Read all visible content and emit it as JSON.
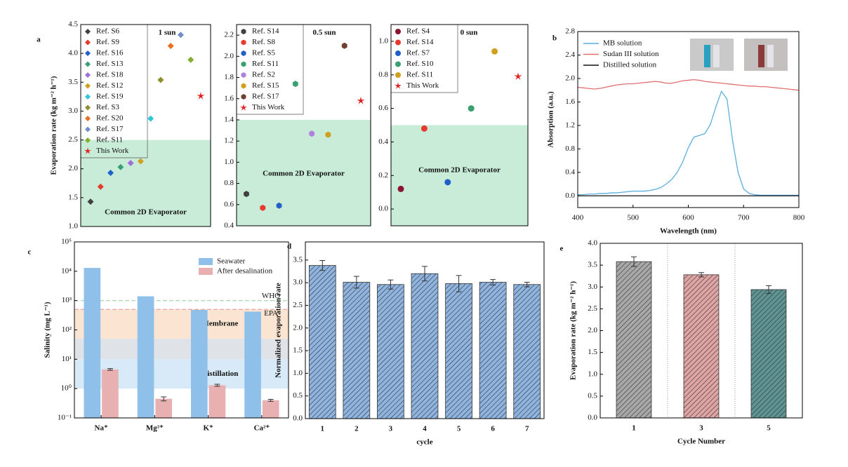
{
  "chart_data": [
    {
      "type": "scatter",
      "panel_label": "a",
      "title": "1 sun",
      "ylabel": "Evaporation rate (kg m⁻² h⁻¹)",
      "ylim": [
        1.0,
        4.5
      ],
      "yticks": [
        {
          "value": 1.0,
          "label": "1.0"
        },
        1.5,
        {
          "value": 2.0,
          "label": "2.0"
        },
        2.5,
        {
          "value": 3.0,
          "label": "3.0"
        },
        3.5,
        {
          "value": 4.0,
          "label": "4.0"
        },
        4.5
      ],
      "threshold": 2.5,
      "annotation": "Common 2D Evaporator",
      "marker": "diamond",
      "series": [
        {
          "name": "Ref. S6",
          "color": "#404040",
          "values": [
            1.43
          ]
        },
        {
          "name": "Ref. S9",
          "color": "#e8392e",
          "values": [
            1.69
          ]
        },
        {
          "name": "Ref. S16",
          "color": "#2060c8",
          "values": [
            1.93
          ]
        },
        {
          "name": "Ref. S13",
          "color": "#3aa070",
          "values": [
            2.03
          ]
        },
        {
          "name": "Ref. S18",
          "color": "#a070d8",
          "values": [
            2.1
          ]
        },
        {
          "name": "Ref. S12",
          "color": "#d0a020",
          "values": [
            2.13
          ]
        },
        {
          "name": "Ref. S19",
          "color": "#30c8d8",
          "values": [
            2.87
          ]
        },
        {
          "name": "Ref. S3",
          "color": "#909030",
          "values": [
            3.54
          ]
        },
        {
          "name": "Ref. S20",
          "color": "#e87020",
          "values": [
            4.13
          ]
        },
        {
          "name": "Ref. S17",
          "color": "#7090c8",
          "values": [
            4.32
          ]
        },
        {
          "name": "Ref. S11",
          "color": "#80b030",
          "values": [
            3.89
          ]
        },
        {
          "name": "This Work",
          "color": "#e02020",
          "marker": "star",
          "values": [
            3.26
          ]
        }
      ]
    },
    {
      "type": "scatter",
      "title": "0.5 sun",
      "ylim": [
        0.4,
        2.3
      ],
      "yticks": [
        0.4,
        0.6,
        0.8,
        {
          "value": 1.0,
          "label": "1.0"
        },
        1.2,
        1.4,
        1.6,
        1.8,
        {
          "value": 2.0,
          "label": "2.0"
        },
        2.2
      ],
      "threshold": 1.4,
      "annotation": "Common 2D Evaporator",
      "marker": "hexagon",
      "series": [
        {
          "name": "Ref. S14",
          "color": "#404040",
          "values": [
            0.7
          ]
        },
        {
          "name": "Ref. S8",
          "color": "#e8392e",
          "values": [
            0.57
          ]
        },
        {
          "name": "Ref. S5",
          "color": "#2060c8",
          "values": [
            0.59
          ]
        },
        {
          "name": "Ref. S11",
          "color": "#3aa070",
          "values": [
            1.74
          ]
        },
        {
          "name": "Ref. S2",
          "color": "#b080e0",
          "values": [
            1.27
          ]
        },
        {
          "name": "Ref. S15",
          "color": "#d0a020",
          "values": [
            1.26
          ]
        },
        {
          "name": "Ref. S17",
          "color": "#704030",
          "values": [
            2.1
          ]
        },
        {
          "name": "This Work",
          "color": "#e02020",
          "marker": "star",
          "values": [
            1.58
          ]
        }
      ]
    },
    {
      "type": "scatter",
      "title": "0 sun",
      "ylim": [
        -0.1,
        1.1
      ],
      "yticks": [
        {
          "value": 0.0,
          "label": "0.0"
        },
        0.2,
        0.4,
        0.6,
        0.8,
        {
          "value": 1.0,
          "label": "1.0"
        }
      ],
      "threshold": 0.5,
      "annotation": "Common 2D Evaporator",
      "marker": "circle",
      "series": [
        {
          "name": "Ref. S4",
          "color": "#8a1530",
          "values": [
            0.12
          ]
        },
        {
          "name": "Ref. S14",
          "color": "#e8392e",
          "values": [
            0.48
          ]
        },
        {
          "name": "Ref. S7",
          "color": "#2060c8",
          "values": [
            0.16
          ]
        },
        {
          "name": "Ref. S10",
          "color": "#3aa070",
          "values": [
            0.6
          ]
        },
        {
          "name": "Ref. S11",
          "color": "#d0a020",
          "values": [
            0.94
          ]
        },
        {
          "name": "This Work",
          "color": "#e02020",
          "marker": "star",
          "values": [
            0.79
          ]
        }
      ]
    },
    {
      "type": "line",
      "panel_label": "b",
      "xlabel": "Wavelength (nm)",
      "ylabel": "Absorption (a.u.)",
      "xlim": [
        400,
        800
      ],
      "xticks": [
        400,
        500,
        600,
        700,
        800
      ],
      "ylim": [
        -0.2,
        2.8
      ],
      "yticks": [
        {
          "value": 0.0,
          "label": "0.0"
        },
        0.4,
        0.8,
        1.2,
        1.6,
        {
          "value": 2.0,
          "label": "2.0"
        },
        2.4,
        2.8
      ],
      "x": [
        400,
        410,
        420,
        430,
        440,
        450,
        460,
        470,
        480,
        490,
        500,
        510,
        520,
        530,
        540,
        550,
        560,
        570,
        580,
        590,
        600,
        610,
        620,
        630,
        640,
        650,
        660,
        670,
        680,
        690,
        700,
        710,
        720,
        730,
        740,
        750,
        760,
        770,
        780,
        790,
        800
      ],
      "series": [
        {
          "name": "MB solution",
          "color": "#5aaee0",
          "values": [
            0.02,
            0.02,
            0.03,
            0.03,
            0.04,
            0.04,
            0.05,
            0.05,
            0.06,
            0.07,
            0.08,
            0.08,
            0.08,
            0.09,
            0.11,
            0.14,
            0.2,
            0.28,
            0.4,
            0.58,
            0.82,
            1.0,
            1.03,
            1.06,
            1.22,
            1.52,
            1.78,
            1.65,
            0.95,
            0.4,
            0.12,
            0.04,
            0.02,
            0.01,
            0.01,
            0.01,
            0.01,
            0.01,
            0.01,
            0.01,
            0.01
          ]
        },
        {
          "name": "Sudan III solution",
          "color": "#e07070",
          "values": [
            1.85,
            1.84,
            1.83,
            1.82,
            1.83,
            1.85,
            1.87,
            1.89,
            1.9,
            1.91,
            1.91,
            1.92,
            1.93,
            1.94,
            1.95,
            1.94,
            1.92,
            1.92,
            1.94,
            1.96,
            1.97,
            1.98,
            1.97,
            1.95,
            1.94,
            1.93,
            1.92,
            1.91,
            1.9,
            1.89,
            1.88,
            1.87,
            1.87,
            1.86,
            1.86,
            1.85,
            1.84,
            1.83,
            1.82,
            1.81,
            1.8
          ]
        },
        {
          "name": "Distilled solution",
          "color": "#111111",
          "values": [
            0,
            0,
            0,
            0,
            0,
            0,
            0,
            0,
            0,
            0,
            0,
            0,
            0,
            0,
            0,
            0,
            0,
            0,
            0,
            0,
            0,
            0,
            0,
            0,
            0,
            0,
            0,
            0,
            0,
            0,
            0,
            0,
            0,
            0,
            0,
            0,
            0,
            0,
            0,
            0,
            0
          ]
        }
      ]
    },
    {
      "type": "bar",
      "panel_label": "c",
      "ylabel": "Salinity (mg L⁻¹)",
      "log_y": true,
      "ylim": [
        0.1,
        100000
      ],
      "yticks": [
        {
          "value": 0.1,
          "label": "10⁻¹"
        },
        {
          "value": 1,
          "label": "10⁰"
        },
        {
          "value": 10,
          "label": "10¹"
        },
        {
          "value": 100,
          "label": "10²"
        },
        {
          "value": 1000,
          "label": "10³"
        },
        {
          "value": 10000,
          "label": "10⁴"
        },
        {
          "value": 100000,
          "label": "10⁵"
        }
      ],
      "categories": [
        "Na⁺",
        "Mg²⁺",
        "K⁺",
        "Ca²⁺"
      ],
      "bands": [
        {
          "label": "Membrane",
          "range": [
            50,
            500
          ],
          "color": "#fbe5d2",
          "text_color": "#d9a040"
        },
        {
          "range": [
            10,
            50
          ],
          "color": "#dfe3e7"
        },
        {
          "label": "Distillation",
          "range": [
            1,
            10
          ],
          "color": "#d8e9f7",
          "text_color": "#4a90d0"
        }
      ],
      "reference_lines": [
        {
          "label": "WHO",
          "value": 1000,
          "color": "#9fd4aa"
        },
        {
          "label": "EPA",
          "value": 500,
          "color": "#e8a0a0"
        }
      ],
      "series": [
        {
          "name": "Seawater",
          "color": "#8fc0ea",
          "values": [
            13000,
            1400,
            480,
            420
          ]
        },
        {
          "name": "After desalination",
          "color": "#e8b0b0",
          "values": [
            4.5,
            0.45,
            1.3,
            0.4
          ],
          "errors": [
            0.3,
            0.07,
            0.1,
            0.03
          ]
        }
      ]
    },
    {
      "type": "bar",
      "panel_label": "d",
      "xlabel": "cycle",
      "ylabel": "Normalized evaporation rate",
      "hatch": true,
      "ylim": [
        0,
        3.9
      ],
      "yticks": [
        {
          "value": 0,
          "label": "0.0"
        },
        0.5,
        {
          "value": 1,
          "label": "1.0"
        },
        1.5,
        {
          "value": 2,
          "label": "2.0"
        },
        2.5,
        {
          "value": 3,
          "label": "3.0"
        },
        3.5
      ],
      "categories": [
        "1",
        "2",
        "3",
        "4",
        "5",
        "6",
        "7"
      ],
      "color": "#8fb4e0",
      "values": [
        3.38,
        3.01,
        2.96,
        3.2,
        2.98,
        3.01,
        2.96
      ],
      "errors": [
        0.11,
        0.13,
        0.1,
        0.16,
        0.18,
        0.06,
        0.05
      ]
    },
    {
      "type": "bar",
      "panel_label": "e",
      "xlabel": "Cycle Number",
      "ylabel": "Evaporation rate (kg m⁻² h⁻¹)",
      "hatch": true,
      "separators": true,
      "ylim": [
        0,
        4.0
      ],
      "yticks": [
        {
          "value": 0,
          "label": "0.0"
        },
        0.5,
        {
          "value": 1,
          "label": "1.0"
        },
        1.5,
        {
          "value": 2,
          "label": "2.0"
        },
        2.5,
        {
          "value": 3,
          "label": "3.0"
        },
        3.5,
        {
          "value": 4,
          "label": "4.0"
        }
      ],
      "categories": [
        "1",
        "3",
        "5"
      ],
      "colors": [
        "#a8a8a8",
        "#e0a4a4",
        "#5f9494"
      ],
      "values": [
        3.58,
        3.28,
        2.94
      ],
      "errors": [
        0.11,
        0.05,
        0.09
      ]
    }
  ]
}
